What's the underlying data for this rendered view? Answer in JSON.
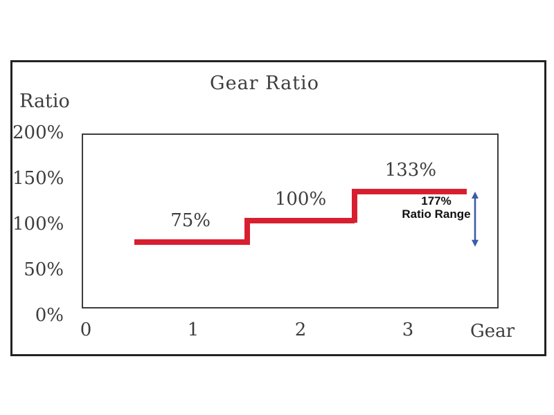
{
  "chart_data": {
    "type": "line",
    "line_style": "step",
    "title": "Gear Ratio",
    "xlabel": "Gear",
    "ylabel": "Ratio",
    "x_tick_values": [
      0,
      1,
      2,
      3
    ],
    "x_tick_labels": [
      "0",
      "1",
      "2",
      "3"
    ],
    "y_tick_percent": [
      200,
      150,
      100,
      50,
      0
    ],
    "y_tick_labels": [
      "200%",
      "150%",
      "100%",
      "50%",
      "0%"
    ],
    "ylim_percent": [
      0,
      200
    ],
    "xlim": [
      0,
      3.8
    ],
    "grid": false,
    "legend": "none",
    "series": [
      {
        "name": "Gear Ratio",
        "color": "#d81f30",
        "points": [
          {
            "gear": 1,
            "ratio_percent": 75,
            "label": "75%",
            "x_from": 0.45,
            "x_to": 1.5
          },
          {
            "gear": 2,
            "ratio_percent": 100,
            "label": "100%",
            "x_from": 1.5,
            "x_to": 2.5
          },
          {
            "gear": 3,
            "ratio_percent": 133,
            "label": "133%",
            "x_from": 2.5,
            "x_to": 3.55
          }
        ]
      }
    ],
    "annotation": {
      "value": "177%",
      "label": "Ratio Range",
      "arrow_color": "#3b5da8",
      "arrow_from_percent": 133,
      "arrow_to_percent": 75
    },
    "text_color": "#3d3d3d"
  }
}
